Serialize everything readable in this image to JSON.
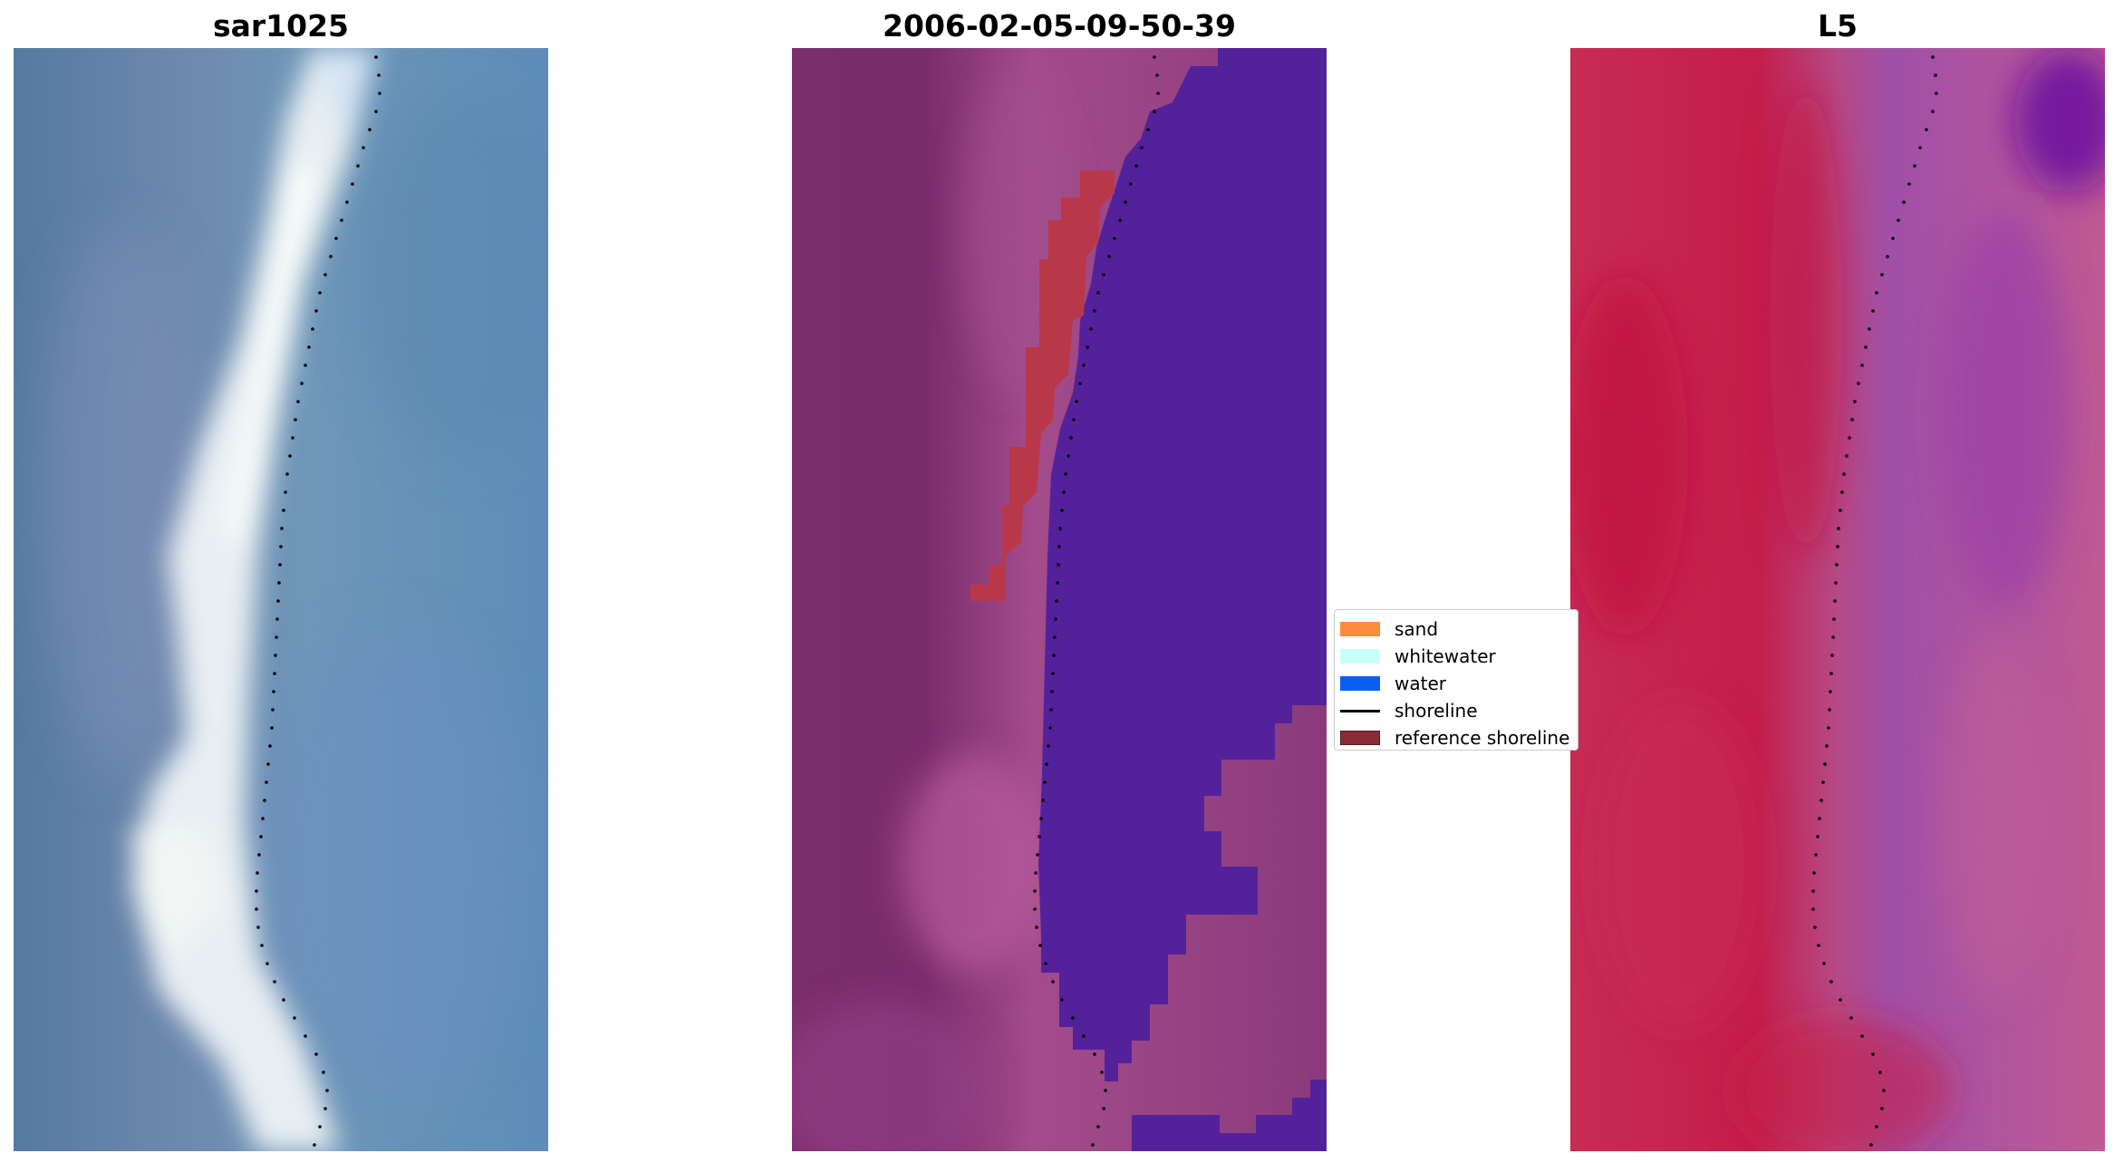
{
  "panels": [
    {
      "title": "sar1025"
    },
    {
      "title": "2006-02-05-09-50-39"
    },
    {
      "title": "L5"
    }
  ],
  "legend": {
    "items": [
      {
        "label": "sand",
        "color": "#ff8c3a",
        "kind": "patch"
      },
      {
        "label": "whitewater",
        "color": "#c8fff8",
        "kind": "patch"
      },
      {
        "label": "water",
        "color": "#0a5ef0",
        "kind": "patch"
      },
      {
        "label": "shoreline",
        "color": "#000000",
        "kind": "line"
      },
      {
        "label": "reference shoreline",
        "color": "#8b2b35",
        "kind": "patch"
      }
    ]
  },
  "colors": {
    "rgb_land": "#5a7ea0",
    "rgb_water": "#5f8fb8",
    "rgb_surf": "#e6f0f2",
    "class_land": "#7a3070",
    "class_water": "#53229b",
    "class_sand_overlay": "#b8384a",
    "ndvi_land": "#c41e4a",
    "ndvi_water": "#9b4ca3",
    "shoreline_dots": "#000000"
  }
}
